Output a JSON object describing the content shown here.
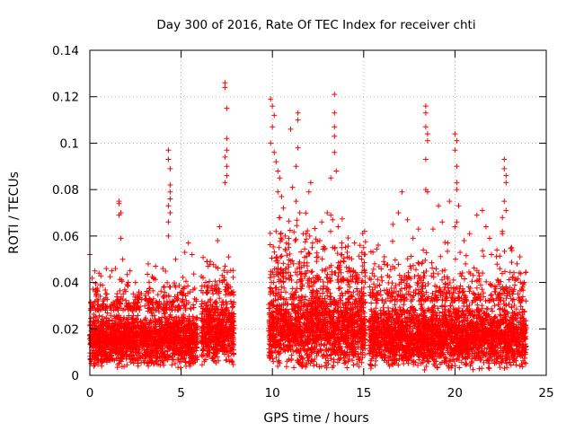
{
  "chart_data": {
    "type": "scatter",
    "title": "Day 300 of 2016, Rate Of TEC Index for receiver chti",
    "xlabel": "GPS time / hours",
    "ylabel": "ROTI / TECUs",
    "xlim": [
      0,
      25
    ],
    "ylim": [
      0,
      0.14
    ],
    "xticks": [
      0,
      5,
      10,
      15,
      20,
      25
    ],
    "yticks": [
      0,
      0.02,
      0.04,
      0.06,
      0.08,
      0.1,
      0.12,
      0.14
    ],
    "xtick_labels": [
      "0",
      "5",
      "10",
      "15",
      "20",
      "25"
    ],
    "ytick_labels": [
      "0",
      "0.02",
      "0.04",
      "0.06",
      "0.08",
      "0.1",
      "0.12",
      "0.14"
    ],
    "grid": true,
    "marker": "+",
    "marker_color": "#ff0000",
    "series": [
      {
        "name": "ROTI",
        "points": [
          [
            0.0,
            0.052
          ],
          [
            0.1,
            0.012
          ],
          [
            0.3,
            0.036
          ],
          [
            0.5,
            0.044
          ],
          [
            0.9,
            0.046
          ],
          [
            1.2,
            0.045
          ],
          [
            1.4,
            0.046
          ],
          [
            1.6,
            0.069
          ],
          [
            1.6,
            0.074
          ],
          [
            1.6,
            0.075
          ],
          [
            1.7,
            0.07
          ],
          [
            1.7,
            0.059
          ],
          [
            1.8,
            0.05
          ],
          [
            2.2,
            0.045
          ],
          [
            2.5,
            0.04
          ],
          [
            3.2,
            0.048
          ],
          [
            3.6,
            0.047
          ],
          [
            4.0,
            0.046
          ],
          [
            4.3,
            0.097
          ],
          [
            4.3,
            0.093
          ],
          [
            4.4,
            0.089
          ],
          [
            4.4,
            0.082
          ],
          [
            4.4,
            0.079
          ],
          [
            4.4,
            0.076
          ],
          [
            4.3,
            0.073
          ],
          [
            4.4,
            0.07
          ],
          [
            4.3,
            0.066
          ],
          [
            4.3,
            0.06
          ],
          [
            4.7,
            0.05
          ],
          [
            5.2,
            0.053
          ],
          [
            5.4,
            0.057
          ],
          [
            5.6,
            0.052
          ],
          [
            6.2,
            0.042
          ],
          [
            6.6,
            0.049
          ],
          [
            7.0,
            0.058
          ],
          [
            7.1,
            0.064
          ],
          [
            7.4,
            0.126
          ],
          [
            7.4,
            0.124
          ],
          [
            7.5,
            0.115
          ],
          [
            7.5,
            0.102
          ],
          [
            7.5,
            0.097
          ],
          [
            7.4,
            0.094
          ],
          [
            7.5,
            0.09
          ],
          [
            7.5,
            0.086
          ],
          [
            7.4,
            0.083
          ],
          [
            7.6,
            0.051
          ],
          [
            9.9,
            0.119
          ],
          [
            10.0,
            0.116
          ],
          [
            10.1,
            0.112
          ],
          [
            10.0,
            0.107
          ],
          [
            9.9,
            0.1
          ],
          [
            10.1,
            0.096
          ],
          [
            10.2,
            0.092
          ],
          [
            10.3,
            0.088
          ],
          [
            10.4,
            0.085
          ],
          [
            10.3,
            0.079
          ],
          [
            10.5,
            0.077
          ],
          [
            10.6,
            0.072
          ],
          [
            10.4,
            0.068
          ],
          [
            10.2,
            0.062
          ],
          [
            10.7,
            0.06
          ],
          [
            10.9,
            0.055
          ],
          [
            11.0,
            0.106
          ],
          [
            11.1,
            0.081
          ],
          [
            11.3,
            0.09
          ],
          [
            11.3,
            0.075
          ],
          [
            11.4,
            0.113
          ],
          [
            11.4,
            0.11
          ],
          [
            11.4,
            0.098
          ],
          [
            11.5,
            0.07
          ],
          [
            11.7,
            0.061
          ],
          [
            12.0,
            0.079
          ],
          [
            12.1,
            0.083
          ],
          [
            12.2,
            0.057
          ],
          [
            12.5,
            0.051
          ],
          [
            12.7,
            0.066
          ],
          [
            12.6,
            0.058
          ],
          [
            13.0,
            0.07
          ],
          [
            13.2,
            0.069
          ],
          [
            13.3,
            0.067
          ],
          [
            13.2,
            0.085
          ],
          [
            13.4,
            0.121
          ],
          [
            13.4,
            0.113
          ],
          [
            13.4,
            0.107
          ],
          [
            13.4,
            0.103
          ],
          [
            13.4,
            0.096
          ],
          [
            13.5,
            0.088
          ],
          [
            13.6,
            0.064
          ],
          [
            13.8,
            0.057
          ],
          [
            14.1,
            0.053
          ],
          [
            14.5,
            0.057
          ],
          [
            14.8,
            0.056
          ],
          [
            15.0,
            0.055
          ],
          [
            15.6,
            0.048
          ],
          [
            16.1,
            0.049
          ],
          [
            16.6,
            0.065
          ],
          [
            16.9,
            0.07
          ],
          [
            17.1,
            0.079
          ],
          [
            17.4,
            0.067
          ],
          [
            17.7,
            0.059
          ],
          [
            18.0,
            0.063
          ],
          [
            18.4,
            0.116
          ],
          [
            18.4,
            0.113
          ],
          [
            18.4,
            0.107
          ],
          [
            18.5,
            0.104
          ],
          [
            18.5,
            0.101
          ],
          [
            18.4,
            0.093
          ],
          [
            18.4,
            0.08
          ],
          [
            18.5,
            0.079
          ],
          [
            18.8,
            0.063
          ],
          [
            19.1,
            0.073
          ],
          [
            19.3,
            0.066
          ],
          [
            19.6,
            0.057
          ],
          [
            19.7,
            0.075
          ],
          [
            20.0,
            0.104
          ],
          [
            20.1,
            0.101
          ],
          [
            20.0,
            0.097
          ],
          [
            20.1,
            0.09
          ],
          [
            20.1,
            0.083
          ],
          [
            20.1,
            0.08
          ],
          [
            20.2,
            0.073
          ],
          [
            20.1,
            0.066
          ],
          [
            20.0,
            0.064
          ],
          [
            20.5,
            0.058
          ],
          [
            20.8,
            0.061
          ],
          [
            21.2,
            0.069
          ],
          [
            21.5,
            0.071
          ],
          [
            21.7,
            0.064
          ],
          [
            21.9,
            0.059
          ],
          [
            22.0,
            0.052
          ],
          [
            22.3,
            0.054
          ],
          [
            22.6,
            0.062
          ],
          [
            22.7,
            0.093
          ],
          [
            22.7,
            0.089
          ],
          [
            22.8,
            0.086
          ],
          [
            22.8,
            0.083
          ],
          [
            22.7,
            0.075
          ],
          [
            22.8,
            0.071
          ],
          [
            22.6,
            0.068
          ],
          [
            22.6,
            0.061
          ],
          [
            23.1,
            0.055
          ],
          [
            23.4,
            0.048
          ],
          [
            23.7,
            0.038
          ]
        ],
        "dense_segments": [
          {
            "x_range": [
              0.0,
              5.9
            ],
            "y_base": [
              0.003,
              0.028
            ],
            "spike_max": 0.046
          },
          {
            "x_range": [
              6.1,
              7.9
            ],
            "y_base": [
              0.004,
              0.035
            ],
            "spike_max": 0.052
          },
          {
            "x_range": [
              9.8,
              15.1
            ],
            "y_base": [
              0.002,
              0.04
            ],
            "spike_max": 0.075
          },
          {
            "x_range": [
              15.3,
              23.9
            ],
            "y_base": [
              0.002,
              0.032
            ],
            "spike_max": 0.058
          }
        ]
      }
    ]
  }
}
